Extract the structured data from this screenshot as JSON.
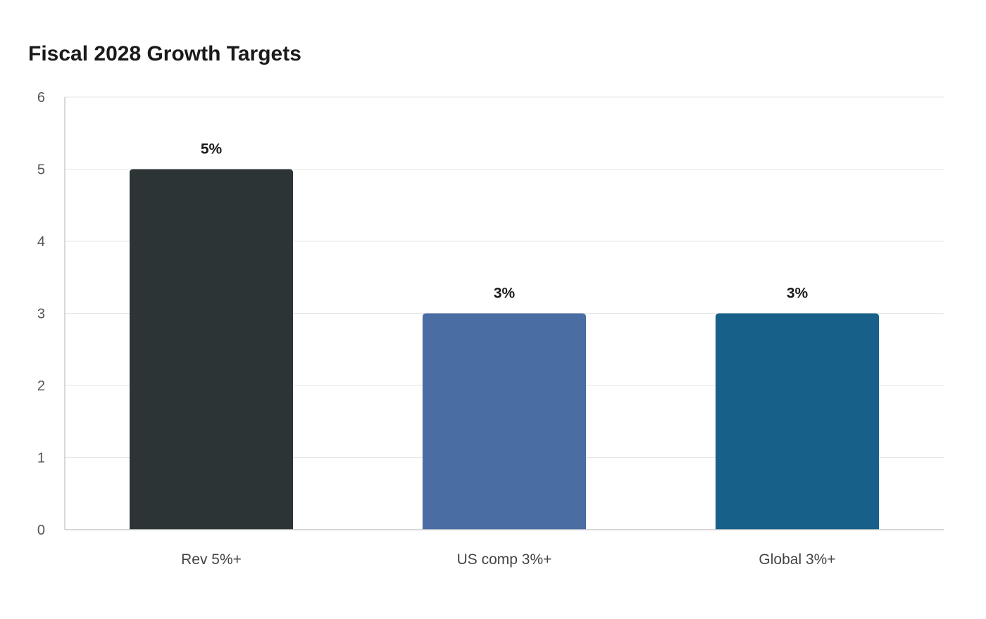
{
  "chart_data": {
    "type": "bar",
    "title": "Fiscal 2028 Growth Targets",
    "xlabel": "",
    "ylabel": "",
    "ylim": [
      0,
      6
    ],
    "yticks": [
      "0",
      "1",
      "2",
      "3",
      "4",
      "5",
      "6"
    ],
    "grid": true,
    "legend": "none",
    "categories": [
      "Rev 5%+",
      "US comp 3%+",
      "Global 3%+"
    ],
    "values": [
      5,
      3,
      3
    ],
    "data_labels": [
      "5%",
      "3%",
      "3%"
    ],
    "colors": [
      "#2d3436",
      "#4a6da3",
      "#166089"
    ]
  }
}
